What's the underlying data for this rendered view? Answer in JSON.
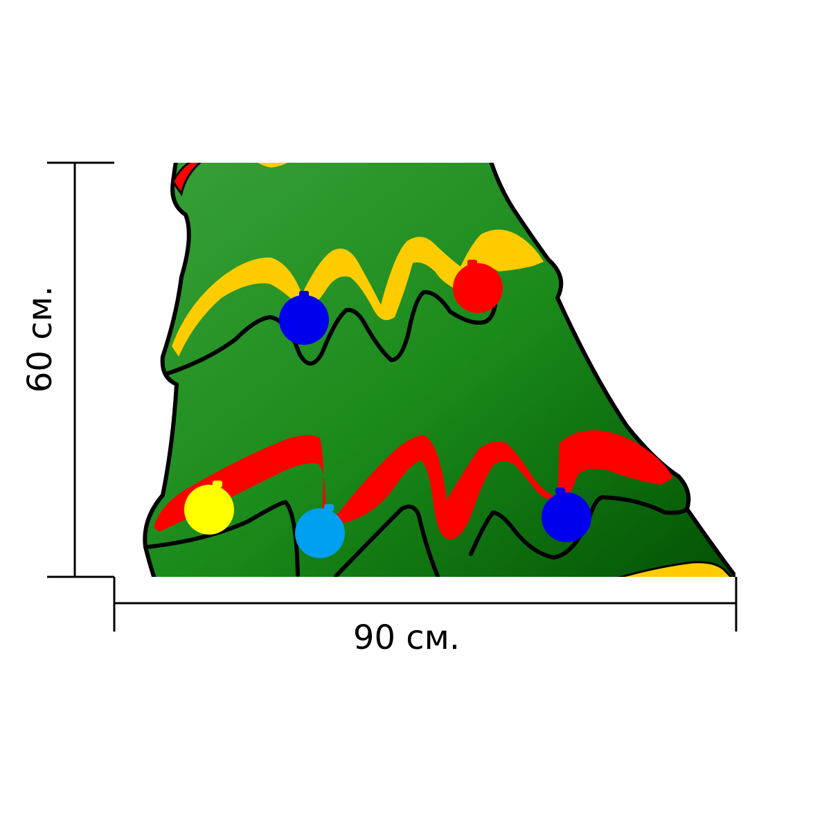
{
  "dimensions": {
    "width_label": "90 см.",
    "height_label": "60 см."
  },
  "artwork": {
    "subject": "christmas-tree",
    "colors": {
      "outline": "#000000",
      "tree_light": "#3aa23a",
      "tree_mid": "#1a8a1a",
      "tree_dark": "#004d00",
      "garland_yellow": "#ffcc00",
      "garland_red": "#ff0000",
      "ornament_red": "#ff0000",
      "ornament_blue": "#0000ee",
      "ornament_yellow": "#ffff00",
      "ornament_light_blue": "#00a0f0",
      "background": "#ffffff"
    }
  }
}
